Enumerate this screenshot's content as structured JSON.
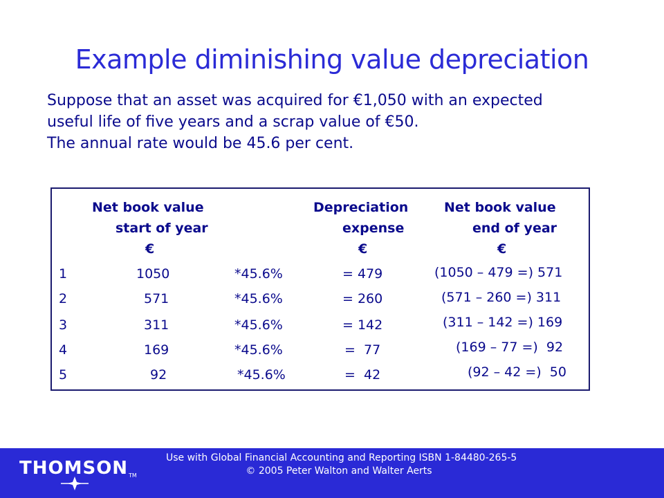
{
  "title": "Example diminishing value depreciation",
  "intro": [
    "Suppose that an asset was acquired for €1,050 with an expected",
    "useful life of five years and a scrap value of €50.",
    "The annual rate would be 45.6 per cent."
  ],
  "table": {
    "headers": {
      "col1_line1": "Net book value",
      "col1_line2": "start of year",
      "col1_unit": "€",
      "col2_line1": "Depreciation",
      "col2_line2": "expense",
      "col2_unit": "€",
      "col3_line1": "Net book value",
      "col3_line2": "end of year",
      "col3_unit": "€"
    },
    "rows": [
      {
        "year": "1",
        "start": "1050",
        "rate": "*45.6%",
        "expense": "= 479",
        "end": "(1050 – 479 =) 571"
      },
      {
        "year": "2",
        "start": "571",
        "rate": "*45.6%",
        "expense": "= 260",
        "end": "(571 – 260 =) 311"
      },
      {
        "year": "3",
        "start": "311",
        "rate": "*45.6%",
        "expense": "= 142",
        "end": "(311 – 142 =) 169"
      },
      {
        "year": "4",
        "start": "169",
        "rate": "*45.6%",
        "expense": "=  77",
        "end": "(169 – 77 =)  92"
      },
      {
        "year": "5",
        "start": "92",
        "rate": "*45.6%",
        "expense": "=  42",
        "end": "(92 – 42 =)  50"
      }
    ]
  },
  "footer": {
    "logo": "THOMSON",
    "trademark": "TM",
    "line1": "Use with Global Financial Accounting and Reporting ISBN 1-84480-265-5",
    "line2": "© 2005 Peter Walton and Walter Aerts"
  }
}
